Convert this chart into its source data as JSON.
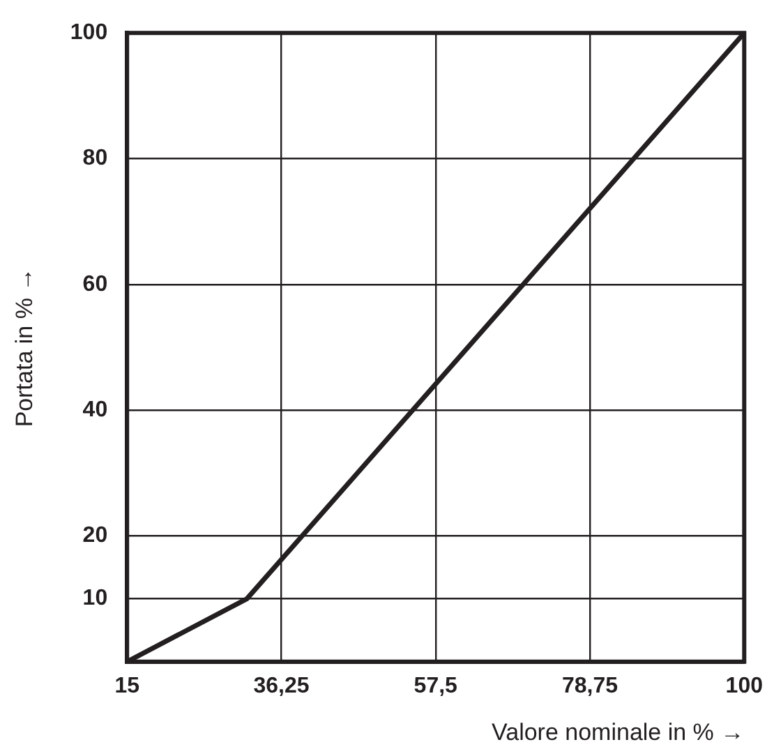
{
  "chart_data": {
    "type": "line",
    "xlabel": "Valore nominale in % →",
    "ylabel": "Portata in % →",
    "x": [
      15,
      31.5,
      100
    ],
    "values": [
      0,
      10,
      100
    ],
    "color": "#231f20",
    "xlim": [
      15,
      100
    ],
    "xticks": [
      15,
      {
        "value": 36.25,
        "label": "36,25"
      },
      {
        "value": 57.5,
        "label": "57,5"
      },
      {
        "value": 78.75,
        "label": "78,75"
      },
      100
    ],
    "ylim": [
      0,
      100
    ],
    "yticks": [
      {
        "value": 0,
        "label": null
      },
      10,
      20,
      40,
      60,
      80,
      100
    ],
    "grid": true,
    "legend": false,
    "marker": "none",
    "line_style": "solid"
  }
}
